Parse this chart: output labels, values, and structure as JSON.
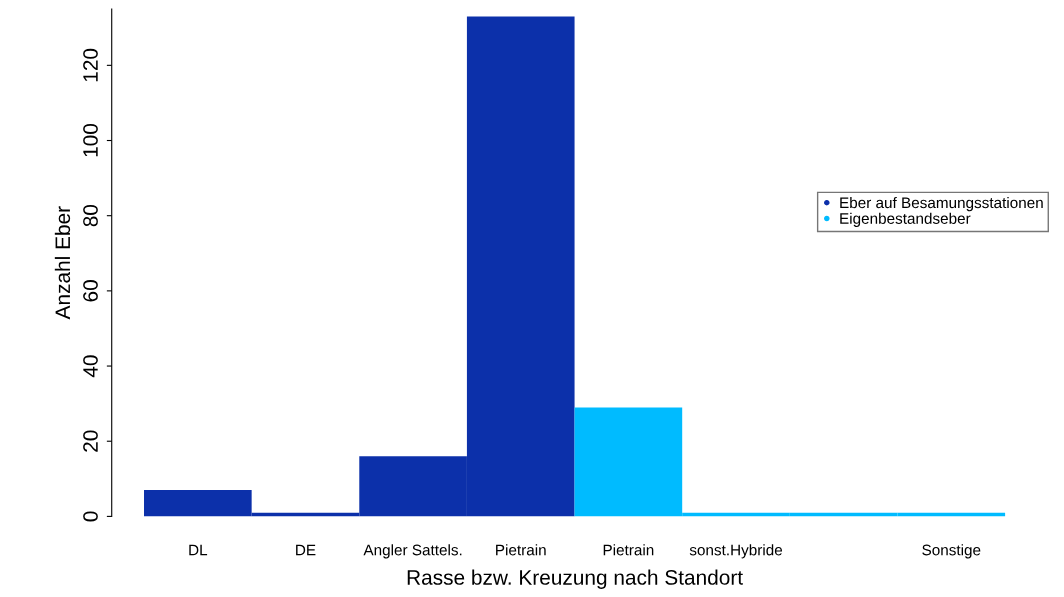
{
  "chart_data": {
    "type": "bar",
    "xlabel": "Rasse bzw. Kreuzung nach Standort",
    "ylabel": "Anzahl Eber",
    "categories": [
      "DL",
      "DE",
      "Angler Sattels.",
      "Pietrain",
      "Pietrain",
      "sonst.Hybride",
      null,
      "Sonstige"
    ],
    "series": [
      {
        "name": "Eber auf Besamungsstationen",
        "color": "#0c30aa",
        "values": [
          7,
          1,
          16,
          133,
          null,
          null,
          null,
          null
        ]
      },
      {
        "name": "Eigenbestandseber",
        "color": "#00bbff",
        "values": [
          null,
          null,
          null,
          null,
          29,
          1,
          1,
          1
        ]
      }
    ],
    "ylim": [
      0,
      135
    ],
    "yticks": [
      0,
      20,
      40,
      60,
      80,
      100,
      120
    ],
    "grid": false,
    "legend": "right",
    "marker": "circle"
  }
}
